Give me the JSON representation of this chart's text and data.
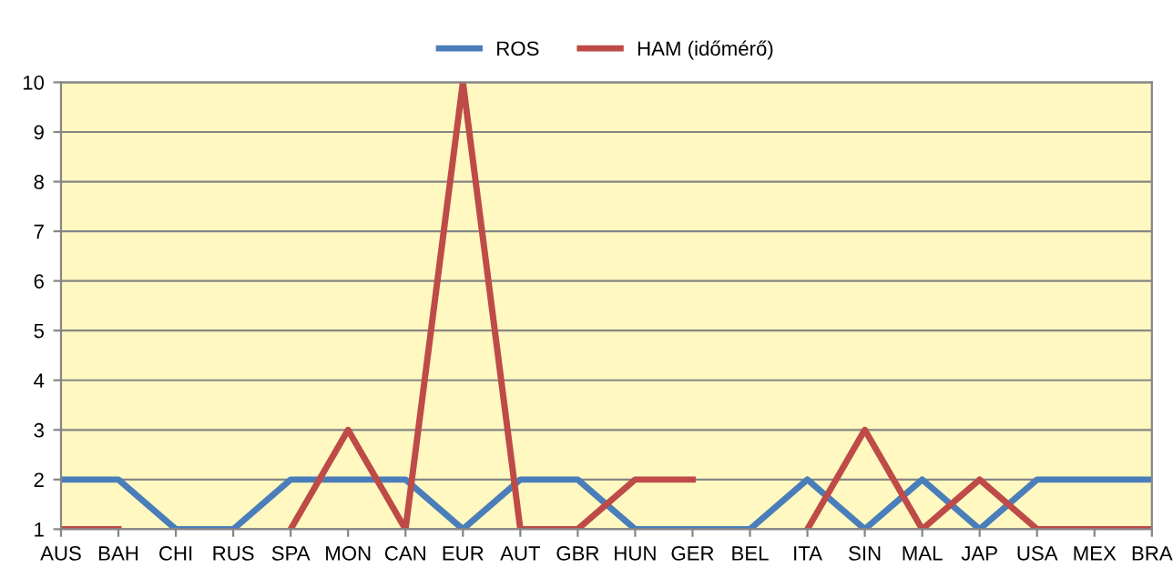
{
  "chart_data": {
    "type": "line",
    "categories": [
      "AUS",
      "BAH",
      "CHI",
      "RUS",
      "SPA",
      "MON",
      "CAN",
      "EUR",
      "AUT",
      "GBR",
      "HUN",
      "GER",
      "BEL",
      "ITA",
      "SIN",
      "MAL",
      "JAP",
      "USA",
      "MEX",
      "BRA"
    ],
    "series": [
      {
        "name": "ROS",
        "color": "#4a7ebb",
        "values": [
          2,
          2,
          1,
          1,
          2,
          2,
          2,
          1,
          2,
          2,
          1,
          1,
          1,
          2,
          1,
          2,
          1,
          2,
          2,
          2
        ]
      },
      {
        "name": "HAM (időmérő)",
        "color": "#be4b48",
        "values": [
          1,
          1,
          null,
          null,
          1,
          3,
          1,
          10,
          1,
          1,
          2,
          2,
          null,
          1,
          3,
          1,
          2,
          1,
          1,
          1
        ]
      }
    ],
    "ylim": [
      1,
      10
    ],
    "yticks": [
      1,
      2,
      3,
      4,
      5,
      6,
      7,
      8,
      9,
      10
    ],
    "grid": "y",
    "legend": "top",
    "marker": "none",
    "line_style": "solid"
  }
}
